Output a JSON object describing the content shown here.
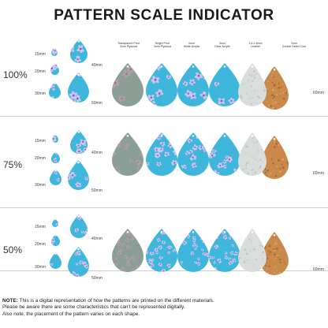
{
  "title": "PATTERN SCALE INDICATOR",
  "materials": [
    "Transparent Print\n3mm Plywood",
    "Bright Print\n3mm Plywood",
    "3mm\nWhite Acrylic",
    "3mm\nClear Acrylic",
    "1.6-1.8mm\nLeather",
    "2mm\nDouble Sided Cork"
  ],
  "sections": [
    {
      "percent": "100%",
      "sizes": [
        "15mm",
        "20mm",
        "30mm"
      ],
      "side_sizes": [
        "40mm",
        "50mm"
      ],
      "material_size": "60mm"
    },
    {
      "percent": "75%",
      "sizes": [
        "15mm",
        "20mm",
        "30mm"
      ],
      "side_sizes": [
        "40mm",
        "50mm"
      ],
      "material_size": "60mm"
    },
    {
      "percent": "50%",
      "sizes": [
        "15mm",
        "20mm",
        "30mm"
      ],
      "side_sizes": [
        "40mm",
        "50mm"
      ],
      "material_size": "60mm"
    }
  ],
  "note": {
    "label": "NOTE:",
    "line1": "This is a digital representation of how the patterns are printed on the different materials.",
    "line2": "Please be aware there are some characteristics that can't be represented digitally.",
    "line3": "Also note, the placement of the pattern varies on each shape."
  },
  "colors": {
    "blue": "#3fb6dc",
    "purple": "#8a56c8",
    "lavender": "#d6c6f0",
    "wood": "#c89a66",
    "cork": "#c8894a",
    "leather": "#d9dedd"
  }
}
